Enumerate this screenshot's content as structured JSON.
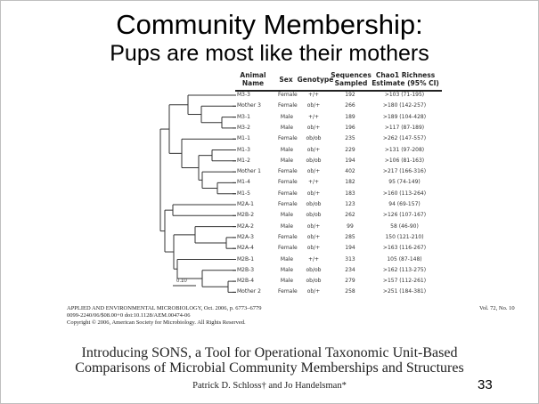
{
  "slide": {
    "title": "Community Membership:",
    "subtitle": "Pups are most like their mothers",
    "page_number": "33"
  },
  "table": {
    "headers": [
      "Animal\nName",
      "Sex",
      "Genotype",
      "Sequences\nSampled",
      "Chao1 Richness\nEstimate (95% CI)"
    ],
    "rows": [
      [
        "M3-3",
        "Female",
        "+/+",
        "192",
        ">103 (71-195)"
      ],
      [
        "Mother 3",
        "Female",
        "ob/+",
        "266",
        ">180 (142-257)"
      ],
      [
        "M3-1",
        "Male",
        "+/+",
        "189",
        ">189 (104-428)"
      ],
      [
        "M3-2",
        "Male",
        "ob/+",
        "196",
        ">117 (87-189)"
      ],
      [
        "M1-1",
        "Female",
        "ob/ob",
        "235",
        ">262 (147-557)"
      ],
      [
        "M1-3",
        "Male",
        "ob/+",
        "229",
        ">131 (97-208)"
      ],
      [
        "M1-2",
        "Male",
        "ob/ob",
        "194",
        ">106 (81-163)"
      ],
      [
        "Mother 1",
        "Female",
        "ob/+",
        "402",
        ">217 (166-316)"
      ],
      [
        "M1-4",
        "Female",
        "+/+",
        "182",
        "95 (74-149)"
      ],
      [
        "M1-5",
        "Female",
        "ob/+",
        "183",
        ">160 (113-264)"
      ],
      [
        "M2A-1",
        "Female",
        "ob/ob",
        "123",
        "94 (69-157)"
      ],
      [
        "M2B-2",
        "Male",
        "ob/ob",
        "262",
        ">126 (107-167)"
      ],
      [
        "M2A-2",
        "Male",
        "ob/+",
        "99",
        "58 (46-90)"
      ],
      [
        "M2A-3",
        "Female",
        "ob/+",
        "285",
        "150 (121-210)"
      ],
      [
        "M2A-4",
        "Female",
        "ob/+",
        "194",
        ">163 (116-267)"
      ],
      [
        "M2B-1",
        "Male",
        "+/+",
        "313",
        "105 (87-148)"
      ],
      [
        "M2B-3",
        "Male",
        "ob/ob",
        "234",
        ">162 (113-275)"
      ],
      [
        "M2B-4",
        "Male",
        "ob/ob",
        "279",
        ">157 (112-261)"
      ],
      [
        "Mother 2",
        "Female",
        "ob/+",
        "258",
        ">251 (184-381)"
      ]
    ]
  },
  "dendrogram": {
    "scale_label": "0.10"
  },
  "citation": {
    "journal_line": "APPLIED AND ENVIRONMENTAL MICROBIOLOGY, Oct. 2006, p. 6773–6779",
    "doi_line": "0099-2240/06/$08.00+0   doi:10.1128/AEM.00474-06",
    "copyright_line": "Copyright © 2006, American Society for Microbiology. All Rights Reserved.",
    "volume": "Vol. 72, No. 10",
    "paper_title_1": "Introducing SONS, a Tool for Operational Taxonomic Unit-Based",
    "paper_title_2": "Comparisons of Microbial Community Memberships and Structures",
    "authors": "Patrick D. Schloss† and Jo Handelsman*"
  }
}
